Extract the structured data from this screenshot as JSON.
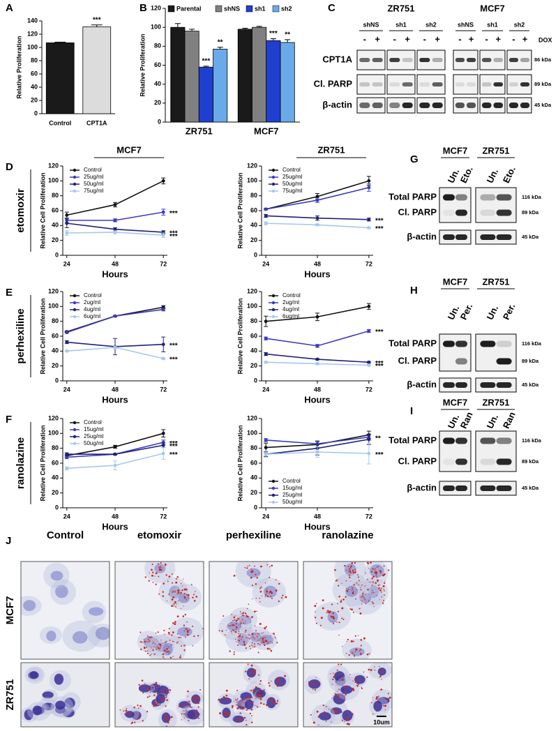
{
  "chart_data": [
    {
      "type": "bar",
      "panel": "A",
      "y_label": "Relative Proliferation",
      "categories": [
        "Control",
        "CPT1A"
      ],
      "values": [
        107,
        131
      ],
      "errors": [
        1,
        3
      ],
      "colors": [
        "#1a1a1a",
        "#dcdcdc"
      ],
      "annotations": [
        null,
        "***"
      ],
      "ylim": [
        0,
        140
      ],
      "yticks": [
        0,
        20,
        40,
        60,
        80,
        100,
        120,
        140
      ]
    },
    {
      "type": "bar",
      "panel": "B",
      "y_label": "Relative Proliferation",
      "categories": [
        "ZR751",
        "MCF7"
      ],
      "series": [
        {
          "name": "Parental",
          "color": "#1a1a1a",
          "values": [
            100,
            98
          ],
          "errors": [
            4,
            1
          ]
        },
        {
          "name": "shNS",
          "color": "#808080",
          "values": [
            96,
            100
          ],
          "errors": [
            2,
            1
          ]
        },
        {
          "name": "sh1",
          "color": "#1f3fd0",
          "values": [
            58,
            86
          ],
          "errors": [
            1,
            2
          ],
          "annotations": [
            "***",
            "***"
          ]
        },
        {
          "name": "sh2",
          "color": "#6aaae8",
          "values": [
            77,
            84
          ],
          "errors": [
            2,
            3
          ],
          "annotations": [
            "**",
            "**"
          ]
        }
      ],
      "ylim": [
        0,
        120
      ],
      "yticks": [
        0,
        20,
        40,
        60,
        80,
        100,
        120
      ],
      "legend": "top"
    },
    {
      "type": "line",
      "panel": "D",
      "treatment": "etomoxir",
      "heading": "MCF7",
      "x": [
        24,
        48,
        72
      ],
      "xlim": [
        22,
        74
      ],
      "xticks": [
        24,
        48,
        72
      ],
      "x_label": "Hours",
      "y_label": "Relative Cell Proliferation",
      "ylim": [
        0,
        120
      ],
      "yticks": [
        0,
        20,
        40,
        60,
        80,
        100,
        120
      ],
      "legend": "upper left",
      "series": [
        {
          "name": "Control",
          "color": "#111111",
          "values": [
            54,
            68,
            100
          ],
          "errors": [
            4,
            3,
            4
          ]
        },
        {
          "name": "25ug/ml",
          "color": "#3a3ac0",
          "values": [
            47,
            47,
            58
          ],
          "errors": [
            3,
            2,
            4
          ],
          "annotation": "***"
        },
        {
          "name": "50ug/ml",
          "color": "#20207a",
          "values": [
            43,
            35,
            31
          ],
          "errors": [
            6,
            2,
            2
          ],
          "annotation": "***"
        },
        {
          "name": "75ug/ml",
          "color": "#a6c8ec",
          "values": [
            30,
            31,
            27
          ],
          "errors": [
            3,
            2,
            3
          ],
          "annotation": "***"
        }
      ]
    },
    {
      "type": "line",
      "heading": "ZR751",
      "x": [
        24,
        48,
        72
      ],
      "xlim": [
        22,
        74
      ],
      "xticks": [
        24,
        48,
        72
      ],
      "x_label": "Hours",
      "y_label": "Relative Cell Proliferation",
      "ylim": [
        0,
        120
      ],
      "yticks": [
        0,
        20,
        40,
        60,
        80,
        100,
        120
      ],
      "legend": "upper left",
      "series": [
        {
          "name": "Control",
          "color": "#111111",
          "values": [
            62,
            79,
            100
          ],
          "errors": [
            1,
            4,
            6
          ]
        },
        {
          "name": "25ug/ml",
          "color": "#3a3ac0",
          "values": [
            62,
            74,
            91
          ],
          "errors": [
            1,
            3,
            5
          ]
        },
        {
          "name": "50ug/ml",
          "color": "#20207a",
          "values": [
            53,
            50,
            48
          ],
          "errors": [
            2,
            3,
            2
          ],
          "annotation": "***"
        },
        {
          "name": "75ug/ml",
          "color": "#a6c8ec",
          "values": [
            43,
            41,
            37
          ],
          "errors": [
            2,
            1,
            1
          ],
          "annotation": "***"
        }
      ]
    },
    {
      "type": "line",
      "panel": "E",
      "treatment": "perhexiline",
      "x": [
        24,
        48,
        72
      ],
      "xlim": [
        22,
        74
      ],
      "xticks": [
        24,
        48,
        72
      ],
      "x_label": "Hours",
      "y_label": "Relative Cell Proliferation",
      "ylim": [
        0,
        120
      ],
      "yticks": [
        0,
        20,
        40,
        60,
        80,
        100,
        120
      ],
      "legend": "upper left",
      "series": [
        {
          "name": "Control",
          "color": "#111111",
          "values": [
            66,
            87,
            99
          ],
          "errors": [
            1,
            1,
            2
          ]
        },
        {
          "name": "2ug/ml",
          "color": "#3a3ac0",
          "values": [
            65,
            87,
            96
          ],
          "errors": [
            1,
            1,
            2
          ]
        },
        {
          "name": "4ug/ml",
          "color": "#20207a",
          "values": [
            52,
            46,
            49
          ],
          "errors": [
            2,
            11,
            10
          ],
          "annotation": "***"
        },
        {
          "name": "6ug/ml",
          "color": "#a6c8ec",
          "values": [
            40,
            45,
            30
          ],
          "errors": [
            1,
            2,
            1
          ],
          "annotation": "***"
        }
      ]
    },
    {
      "type": "line",
      "x": [
        24,
        48,
        72
      ],
      "xlim": [
        22,
        74
      ],
      "xticks": [
        24,
        48,
        72
      ],
      "x_label": "Hours",
      "y_label": "Relative Cell Proliferation",
      "ylim": [
        0,
        120
      ],
      "yticks": [
        0,
        20,
        40,
        60,
        80,
        100,
        120
      ],
      "legend": "upper left",
      "series": [
        {
          "name": "Control",
          "color": "#111111",
          "values": [
            80,
            86,
            100
          ],
          "errors": [
            7,
            5,
            4
          ]
        },
        {
          "name": "2ug/ml",
          "color": "#3a3ac0",
          "values": [
            57,
            47,
            67
          ],
          "errors": [
            2,
            2,
            2
          ],
          "annotation": "***"
        },
        {
          "name": "4ug/ml",
          "color": "#20207a",
          "values": [
            36,
            29,
            25
          ],
          "errors": [
            2,
            1,
            1
          ],
          "annotation": "***"
        },
        {
          "name": "6ug/ml",
          "color": "#a6c8ec",
          "values": [
            25,
            23,
            21
          ],
          "errors": [
            1,
            1,
            1
          ],
          "annotation": "***"
        }
      ]
    },
    {
      "type": "line",
      "panel": "F",
      "treatment": "ranolazine",
      "x": [
        24,
        48,
        72
      ],
      "xlim": [
        22,
        74
      ],
      "xticks": [
        24,
        48,
        72
      ],
      "x_label": "Hours",
      "y_label": "Relative Cell Proliferation",
      "ylim": [
        0,
        120
      ],
      "yticks": [
        0,
        20,
        40,
        60,
        80,
        100,
        120
      ],
      "legend": "upper left",
      "series": [
        {
          "name": "Control",
          "color": "#111111",
          "values": [
            70,
            82,
            100
          ],
          "errors": [
            2,
            2,
            5
          ]
        },
        {
          "name": "15ug/ml",
          "color": "#3a3ac0",
          "values": [
            68,
            72,
            88
          ],
          "errors": [
            2,
            1,
            3
          ],
          "annotation": "***"
        },
        {
          "name": "25ug/ml",
          "color": "#20207a",
          "values": [
            72,
            72,
            84
          ],
          "errors": [
            2,
            1,
            3
          ],
          "annotation": "***"
        },
        {
          "name": "50ug/ml",
          "color": "#a6c8ec",
          "values": [
            53,
            57,
            73
          ],
          "errors": [
            2,
            6,
            8
          ],
          "annotation": "***"
        }
      ]
    },
    {
      "type": "line",
      "x": [
        24,
        48,
        72
      ],
      "xlim": [
        22,
        74
      ],
      "xticks": [
        24,
        48,
        72
      ],
      "x_label": "Hours",
      "y_label": "Relative Cell Proliferation",
      "ylim": [
        0,
        120
      ],
      "yticks": [
        0,
        20,
        40,
        60,
        80,
        100,
        120
      ],
      "legend": "lower left",
      "series": [
        {
          "name": "Control",
          "color": "#111111",
          "values": [
            81,
            85,
            98
          ],
          "errors": [
            6,
            5,
            5
          ]
        },
        {
          "name": "15ug/ml",
          "color": "#3a3ac0",
          "values": [
            91,
            86,
            95
          ],
          "errors": [
            2,
            4,
            4
          ],
          "annotation": "**"
        },
        {
          "name": "25ug/ml",
          "color": "#20207a",
          "values": [
            72,
            80,
            92
          ],
          "errors": [
            3,
            9,
            7
          ]
        },
        {
          "name": "50ug/ml",
          "color": "#a6c8ec",
          "values": [
            72,
            75,
            73
          ],
          "errors": [
            4,
            7,
            14
          ],
          "annotation": "***"
        }
      ]
    }
  ],
  "blots": [
    {
      "panel": "C",
      "cell_lines": [
        "ZR751",
        "MCF7"
      ],
      "groups": [
        "shNS",
        "sh1",
        "sh2"
      ],
      "dox": [
        "-",
        "+"
      ],
      "dox_label": "DOX",
      "rows": [
        "CPT1A",
        "Cl. PARP",
        "β-actin"
      ],
      "sizes": [
        "86 kDa",
        "89 kDa",
        "45 kDa"
      ]
    },
    {
      "panel": "G",
      "cell_lines": [
        "MCF7",
        "ZR751"
      ],
      "lanes": [
        "Un.",
        "Eto."
      ],
      "rows": [
        "Total PARP",
        "Cl. PARP",
        "β-actin"
      ],
      "sizes": [
        "116 kDa",
        "89 kDa",
        "45 kDa"
      ]
    },
    {
      "panel": "H",
      "cell_lines": [
        "MCF7",
        "ZR751"
      ],
      "lanes": [
        "Un.",
        "Per."
      ],
      "rows": [
        "Total PARP",
        "Cl. PARP",
        "β-actin"
      ],
      "sizes": [
        "116 kDa",
        "89 kDa",
        "45 kDa"
      ]
    },
    {
      "panel": "I",
      "cell_lines": [
        "MCF7",
        "ZR751"
      ],
      "lanes": [
        "Un.",
        "Ran"
      ],
      "rows": [
        "Total PARP",
        "Cl. PARP",
        "β-actin"
      ],
      "sizes": [
        "116 kDa",
        "89 kDa",
        "45 kDa"
      ]
    }
  ],
  "micrographs": {
    "panel": "J",
    "columns": [
      "Control",
      "etomoxir",
      "perhexiline",
      "ranolazine"
    ],
    "rows": [
      "MCF7",
      "ZR751"
    ],
    "scale_bar": "10um"
  }
}
